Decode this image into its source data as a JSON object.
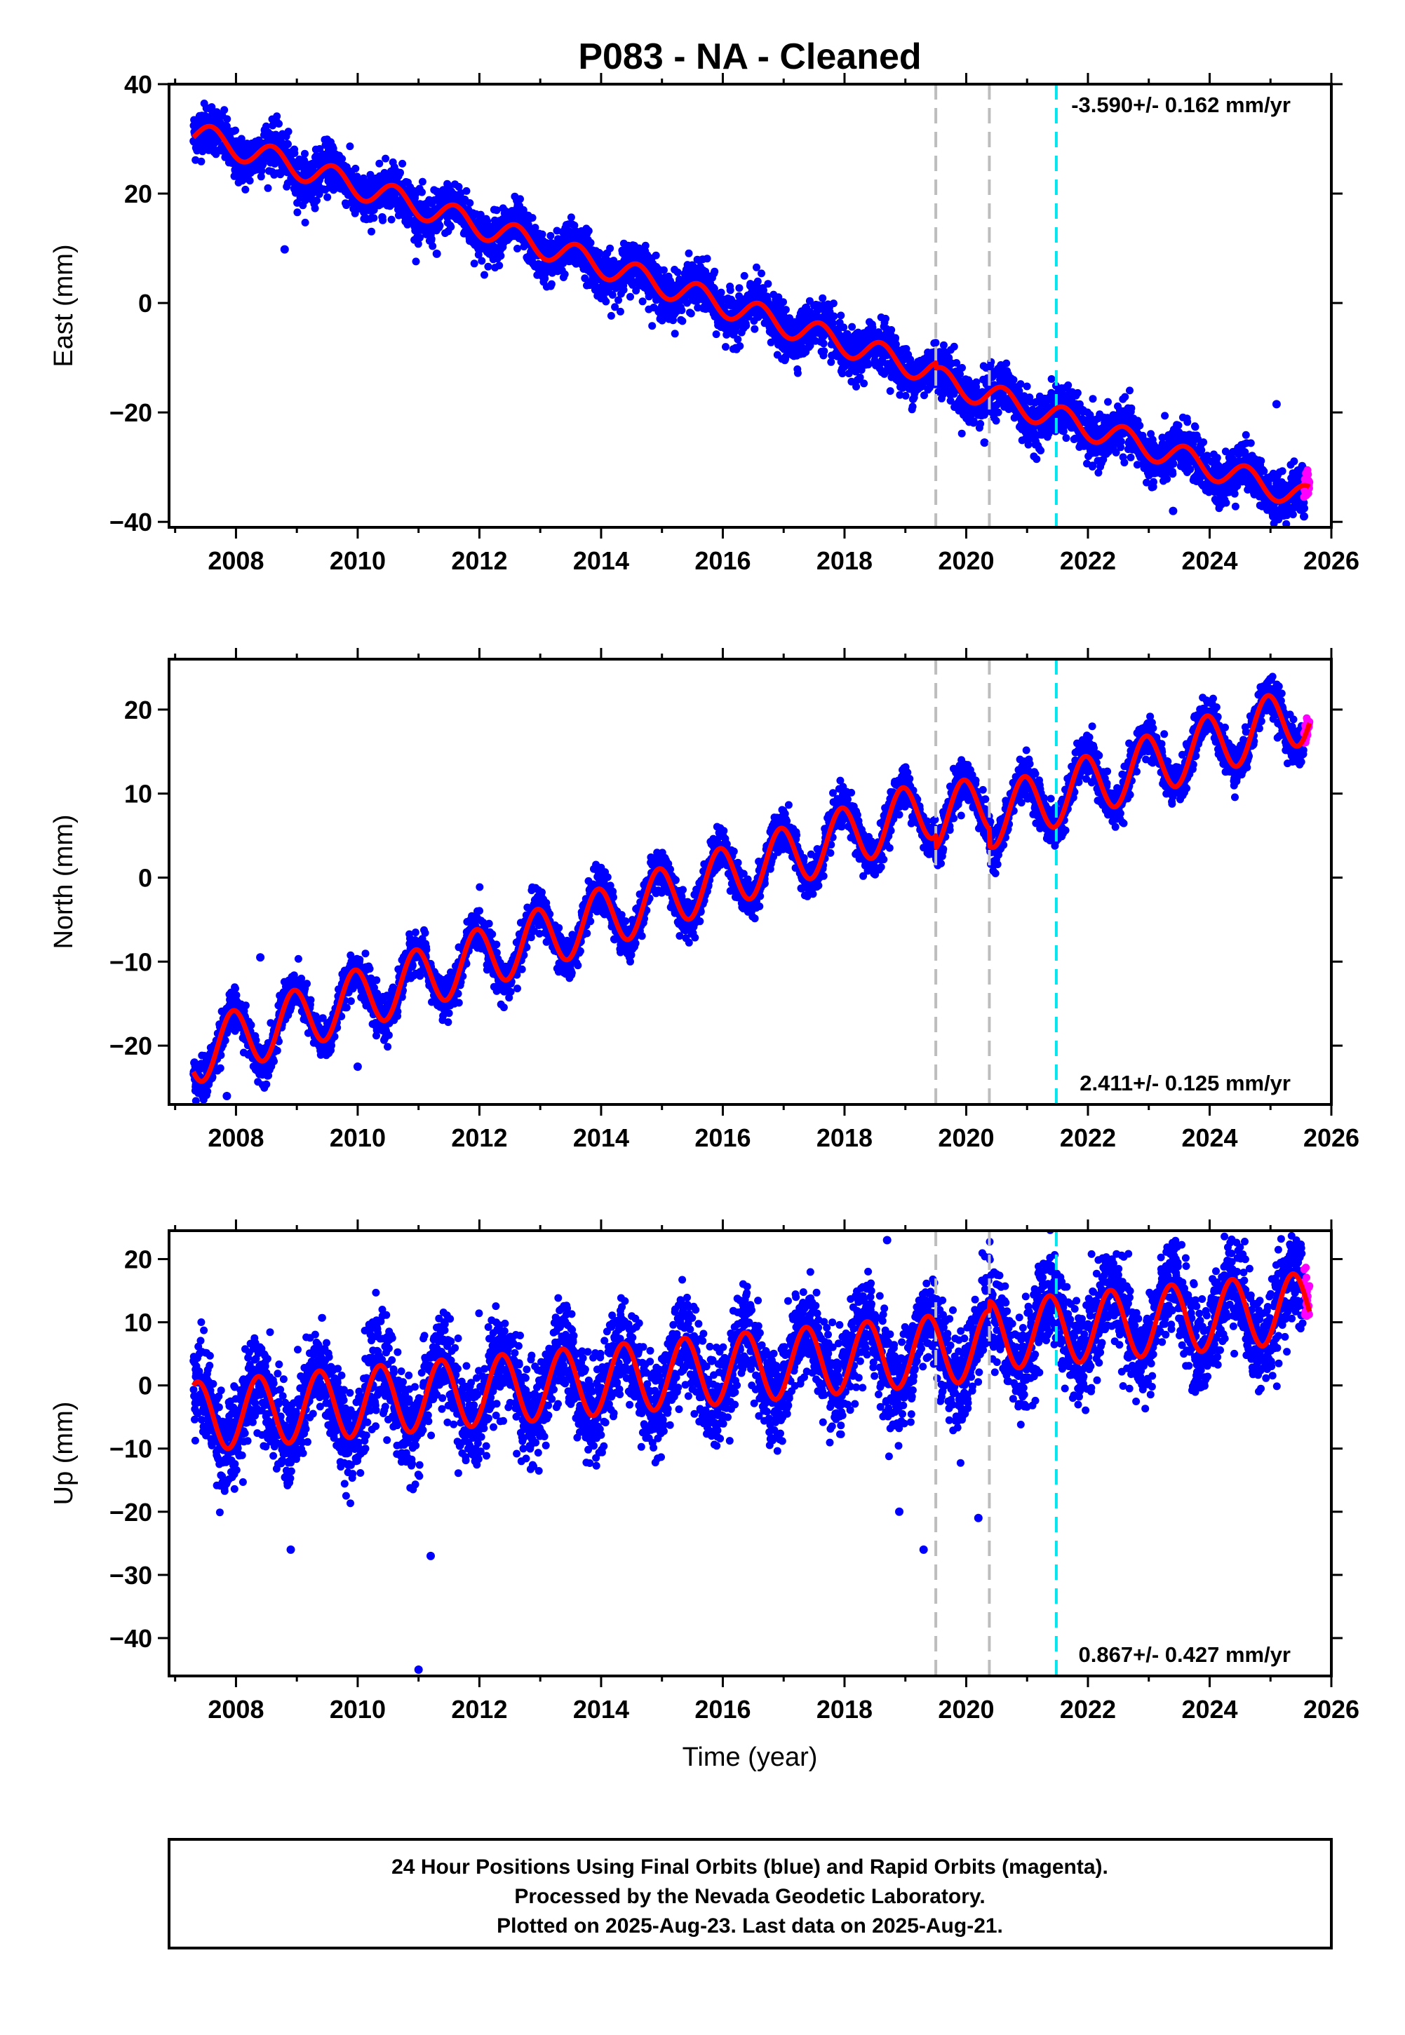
{
  "chart_data": {
    "type": "scatter",
    "title": "P083  - NA - Cleaned",
    "xlabel": "Time (year)",
    "xlim": [
      2006.9,
      2026.0
    ],
    "xticks": [
      2008,
      2010,
      2012,
      2014,
      2016,
      2018,
      2020,
      2022,
      2024,
      2026
    ],
    "x_start": 2007.3,
    "final_end": 2025.55,
    "last_data": 2025.64,
    "markers": [
      {
        "x": 2019.5,
        "color": "#bdbdbd"
      },
      {
        "x": 2020.38,
        "color": "#bdbdbd"
      },
      {
        "x": 2021.48,
        "color": "#00e5ee"
      }
    ],
    "series_colors": {
      "final": "#0000ff",
      "rapid": "#ff00ff",
      "model": "#ff0000"
    },
    "panels": [
      {
        "ylabel": "East (mm)",
        "ylim": [
          -41,
          40
        ],
        "yticks": [
          -40,
          -20,
          0,
          20,
          40
        ],
        "rate": "-3.590+/- 0.162 mm/yr",
        "rate_position": "top-right",
        "model": {
          "offset": 31,
          "ref": 2007.3,
          "slope": -3.59,
          "annual": 2.3,
          "phase": 0.35,
          "steps": [
            {
              "x": 2019.5,
              "dy": -1.0
            },
            {
              "x": 2020.38,
              "dy": 0.0
            }
          ]
        },
        "noise": 2.2,
        "extremes": [
          [
            2008.8,
            9.8
          ],
          [
            2010.8,
            16.0
          ],
          [
            2011.3,
            9.0
          ],
          [
            2020.3,
            -25.5
          ],
          [
            2023.4,
            -38.0
          ],
          [
            2025.1,
            -18.5
          ],
          [
            2025.55,
            -39.0
          ],
          [
            2025.55,
            -37.5
          ]
        ]
      },
      {
        "ylabel": "North (mm)",
        "ylim": [
          -27,
          26
        ],
        "yticks": [
          -20,
          -10,
          0,
          10,
          20
        ],
        "rate": "2.411+/- 0.125 mm/yr",
        "rate_position": "bottom-right",
        "model": {
          "offset": -21,
          "ref": 2007.3,
          "slope": 2.411,
          "annual": 3.6,
          "phase": 0.7,
          "steps": [
            {
              "x": 2019.5,
              "dy": -1.5
            },
            {
              "x": 2020.38,
              "dy": -2.0
            }
          ]
        },
        "noise": 1.2,
        "extremes": [
          [
            2007.5,
            -25.5
          ],
          [
            2007.85,
            -26.0
          ],
          [
            2008.4,
            -9.5
          ],
          [
            2010.0,
            -22.5
          ],
          [
            2015.5,
            -3.5
          ]
        ]
      },
      {
        "ylabel": "Up (mm)",
        "ylim": [
          -46,
          24.5
        ],
        "yticks": [
          -40,
          -30,
          -20,
          -10,
          0,
          10,
          20
        ],
        "rate": "0.867+/- 0.427 mm/yr",
        "rate_position": "bottom-right",
        "model": {
          "offset": -5,
          "ref": 2007.3,
          "slope": 0.867,
          "annual": 5.5,
          "phase": 0.12,
          "steps": [
            {
              "x": 2020.38,
              "dy": 1.5
            }
          ]
        },
        "noise": 3.8,
        "extremes": [
          [
            2011.0,
            -45.0
          ],
          [
            2018.7,
            23.0
          ],
          [
            2018.9,
            -20.0
          ],
          [
            2019.3,
            -26.0
          ],
          [
            2011.2,
            -27.0
          ],
          [
            2008.9,
            -26.0
          ],
          [
            2020.2,
            -21.0
          ],
          [
            2021.4,
            13.5
          ]
        ]
      }
    ],
    "footer_lines": [
      "24 Hour Positions Using Final Orbits (blue) and Rapid Orbits (magenta).",
      "Processed by the Nevada Geodetic Laboratory.",
      "Plotted on 2025-Aug-23. Last data on 2025-Aug-21."
    ]
  }
}
